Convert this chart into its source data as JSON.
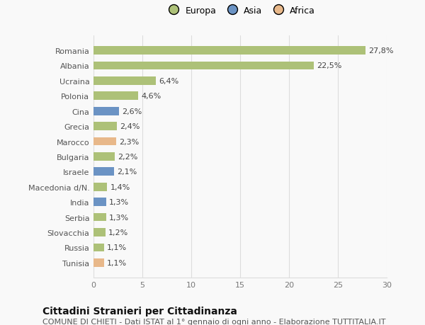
{
  "categories": [
    "Tunisia",
    "Russia",
    "Slovacchia",
    "Serbia",
    "India",
    "Macedonia d/N.",
    "Israele",
    "Bulgaria",
    "Marocco",
    "Grecia",
    "Cina",
    "Polonia",
    "Ucraina",
    "Albania",
    "Romania"
  ],
  "values": [
    1.1,
    1.1,
    1.2,
    1.3,
    1.3,
    1.4,
    2.1,
    2.2,
    2.3,
    2.4,
    2.6,
    4.6,
    6.4,
    22.5,
    27.8
  ],
  "colors": [
    "#e8b88a",
    "#adc178",
    "#adc178",
    "#adc178",
    "#6b93c4",
    "#adc178",
    "#6b93c4",
    "#adc178",
    "#e8b88a",
    "#adc178",
    "#6b93c4",
    "#adc178",
    "#adc178",
    "#adc178",
    "#adc178"
  ],
  "labels": [
    "1,1%",
    "1,1%",
    "1,2%",
    "1,3%",
    "1,3%",
    "1,4%",
    "2,1%",
    "2,2%",
    "2,3%",
    "2,4%",
    "2,6%",
    "4,6%",
    "6,4%",
    "22,5%",
    "27,8%"
  ],
  "legend_labels": [
    "Europa",
    "Asia",
    "Africa"
  ],
  "legend_colors": [
    "#adc178",
    "#6b93c4",
    "#e8b88a"
  ],
  "title": "Cittadini Stranieri per Cittadinanza",
  "subtitle": "COMUNE DI CHIETI - Dati ISTAT al 1° gennaio di ogni anno - Elaborazione TUTTITALIA.IT",
  "xlim": [
    0,
    30
  ],
  "xticks": [
    0,
    5,
    10,
    15,
    20,
    25,
    30
  ],
  "background_color": "#f9f9f9",
  "grid_color": "#dddddd",
  "bar_height": 0.55,
  "title_fontsize": 10,
  "subtitle_fontsize": 8,
  "label_fontsize": 8,
  "tick_fontsize": 8
}
